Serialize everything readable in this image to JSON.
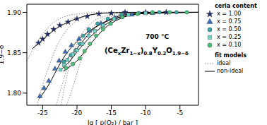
{
  "chart_data": {
    "type": "scatter",
    "x_label": "lg [ p(O₂) / bar ]",
    "y_label": "1.9−δ",
    "xlim": [
      -27.3,
      -2.3
    ],
    "xticks": [
      -25,
      -20,
      -15,
      -10,
      -5
    ],
    "ylim": [
      1.785,
      1.91
    ],
    "yticks": [
      {
        "value": 1.8,
        "label": "1.80"
      },
      {
        "value": 1.85,
        "label": "1.85"
      },
      {
        "value": 1.9,
        "label": "1.90"
      }
    ],
    "grid": false,
    "legend": "right",
    "annotations": [
      {
        "segments": [
          {
            "text": "700 °C",
            "sub": false
          }
        ]
      },
      {
        "segments": [
          {
            "text": "(Ce",
            "sub": false
          },
          {
            "text": "x",
            "sub": true
          },
          {
            "text": "Zr",
            "sub": false
          },
          {
            "text": "1−x",
            "sub": true
          },
          {
            "text": ")",
            "sub": false
          },
          {
            "text": "0.8",
            "sub": true
          },
          {
            "text": "Y",
            "sub": false
          },
          {
            "text": "0.2",
            "sub": true
          },
          {
            "text": "O",
            "sub": false
          },
          {
            "text": "1.9−δ",
            "sub": true
          }
        ]
      }
    ],
    "series": [
      {
        "name": "x = 1.00",
        "group": "ceria content",
        "type": "scatter",
        "marker": "star",
        "color": "#1f2a6b",
        "x": [
          -25.6,
          -25.0,
          -24.3,
          -23.4,
          -22.5,
          -21.3,
          -20.0,
          -18.5,
          -16.8,
          -15.0,
          -13.0,
          -10.0,
          -7.0
        ],
        "values": [
          1.862,
          1.867,
          1.873,
          1.879,
          1.884,
          1.888,
          1.892,
          1.895,
          1.898,
          1.899,
          1.9,
          1.9,
          1.9
        ]
      },
      {
        "name": "x = 0.75",
        "group": "ceria content",
        "type": "scatter",
        "marker": "triangle",
        "color": "#3b6fb6",
        "x": [
          -25.4,
          -24.8,
          -24.1,
          -23.2,
          -22.6,
          -21.7,
          -20.8,
          -19.7,
          -18.2,
          -16.5,
          -14.5,
          -12.0,
          -9.0
        ],
        "values": [
          1.796,
          1.806,
          1.815,
          1.83,
          1.84,
          1.851,
          1.859,
          1.867,
          1.877,
          1.886,
          1.893,
          1.897,
          1.899
        ]
      },
      {
        "name": "x = 0.50",
        "group": "ceria content",
        "type": "scatter",
        "marker": "circle",
        "color": "#3aa6a6",
        "x": [
          -21.9,
          -20.9,
          -20.2,
          -19.6,
          -19.1,
          -18.3,
          -17.0,
          -15.5,
          -13.5,
          -11.0,
          -8.0,
          -5.5
        ],
        "values": [
          1.839,
          1.847,
          1.853,
          1.861,
          1.871,
          1.879,
          1.886,
          1.892,
          1.897,
          1.899,
          1.9,
          1.9
        ]
      },
      {
        "name": "x = 0.25",
        "group": "ceria content",
        "type": "scatter",
        "marker": "square",
        "color": "#6fd3c6",
        "x": [
          -22.4,
          -21.9,
          -21.4,
          -20.6,
          -20.0,
          -19.2,
          -18.3,
          -17.4,
          -16.2,
          -14.6,
          -12.5,
          -10.0
        ],
        "values": [
          1.829,
          1.835,
          1.841,
          1.848,
          1.853,
          1.861,
          1.871,
          1.877,
          1.884,
          1.892,
          1.897,
          1.899
        ]
      },
      {
        "name": "x = 0.10",
        "group": "ceria content",
        "type": "scatter",
        "marker": "circle",
        "color": "#4cc07a",
        "x": [
          -21.6,
          -20.6,
          -19.6,
          -18.9,
          -18.1,
          -17.2,
          -16.2,
          -15.1,
          -13.4,
          -11.2,
          -9.0,
          -6.5,
          -4.0
        ],
        "values": [
          1.831,
          1.836,
          1.843,
          1.852,
          1.861,
          1.871,
          1.879,
          1.886,
          1.894,
          1.898,
          1.9,
          1.9,
          1.9
        ]
      },
      {
        "name": "ideal",
        "group": "fit models",
        "type": "line",
        "line_style": "dotted",
        "color": "#888888",
        "curves": [
          {
            "x": [
              -27.3,
              -26.0,
              -25.0,
              -24.0,
              -22.0,
              -20.0,
              -16.0,
              -2.3
            ],
            "values": [
              1.84,
              1.86,
              1.873,
              1.883,
              1.894,
              1.898,
              1.9,
              1.9
            ]
          },
          {
            "x": [
              -25.8,
              -25.0,
              -24.0,
              -23.0,
              -22.0,
              -20.0,
              -17.0,
              -13.0,
              -2.3
            ],
            "values": [
              1.785,
              1.81,
              1.835,
              1.857,
              1.872,
              1.89,
              1.898,
              1.9,
              1.9
            ]
          },
          {
            "x": [
              -23.0,
              -22.0,
              -21.0,
              -20.0,
              -19.0,
              -17.0,
              -14.0,
              -11.0,
              -2.3
            ],
            "values": [
              1.785,
              1.815,
              1.84,
              1.857,
              1.87,
              1.887,
              1.897,
              1.9,
              1.9
            ]
          },
          {
            "x": [
              -22.3,
              -21.5,
              -20.5,
              -19.5,
              -18.0,
              -16.0,
              -13.0,
              -10.0,
              -2.3
            ],
            "values": [
              1.785,
              1.82,
              1.85,
              1.87,
              1.886,
              1.895,
              1.899,
              1.9,
              1.9
            ]
          },
          {
            "x": [
              -21.5,
              -20.5,
              -19.5,
              -18.5,
              -17.0,
              -15.0,
              -12.0,
              -9.0,
              -2.3
            ],
            "values": [
              1.785,
              1.81,
              1.838,
              1.858,
              1.878,
              1.892,
              1.899,
              1.9,
              1.9
            ]
          }
        ]
      },
      {
        "name": "non-ideal",
        "group": "fit models",
        "type": "line",
        "line_style": "solid",
        "color": "#000000",
        "curves": [
          {
            "x": [
              -26.5,
              -25.0,
              -23.0,
              -21.0,
              -19.0,
              -16.0,
              -12.0,
              -2.3
            ],
            "values": [
              1.855,
              1.866,
              1.88,
              1.889,
              1.895,
              1.899,
              1.9,
              1.9
            ]
          },
          {
            "x": [
              -25.5,
              -24.0,
              -23.0,
              -22.0,
              -20.0,
              -18.0,
              -15.0,
              -12.0,
              -8.0,
              -2.3
            ],
            "values": [
              1.793,
              1.812,
              1.828,
              1.843,
              1.864,
              1.878,
              1.891,
              1.897,
              1.9,
              1.9
            ]
          },
          {
            "x": [
              -22.0,
              -21.0,
              -20.0,
              -19.0,
              -18.0,
              -16.0,
              -14.0,
              -11.0,
              -2.3
            ],
            "values": [
              1.838,
              1.846,
              1.855,
              1.866,
              1.876,
              1.888,
              1.895,
              1.899,
              1.9
            ]
          },
          {
            "x": [
              -22.5,
              -21.0,
              -20.0,
              -19.0,
              -18.0,
              -16.0,
              -14.0,
              -11.0,
              -2.3
            ],
            "values": [
              1.828,
              1.84,
              1.851,
              1.861,
              1.87,
              1.884,
              1.893,
              1.898,
              1.9
            ]
          },
          {
            "x": [
              -22.0,
              -21.0,
              -20.0,
              -19.0,
              -18.0,
              -17.0,
              -16.0,
              -14.0,
              -12.0,
              -9.0,
              -2.3
            ],
            "values": [
              1.827,
              1.833,
              1.84,
              1.85,
              1.861,
              1.871,
              1.88,
              1.891,
              1.897,
              1.9,
              1.9
            ]
          }
        ]
      }
    ]
  }
}
